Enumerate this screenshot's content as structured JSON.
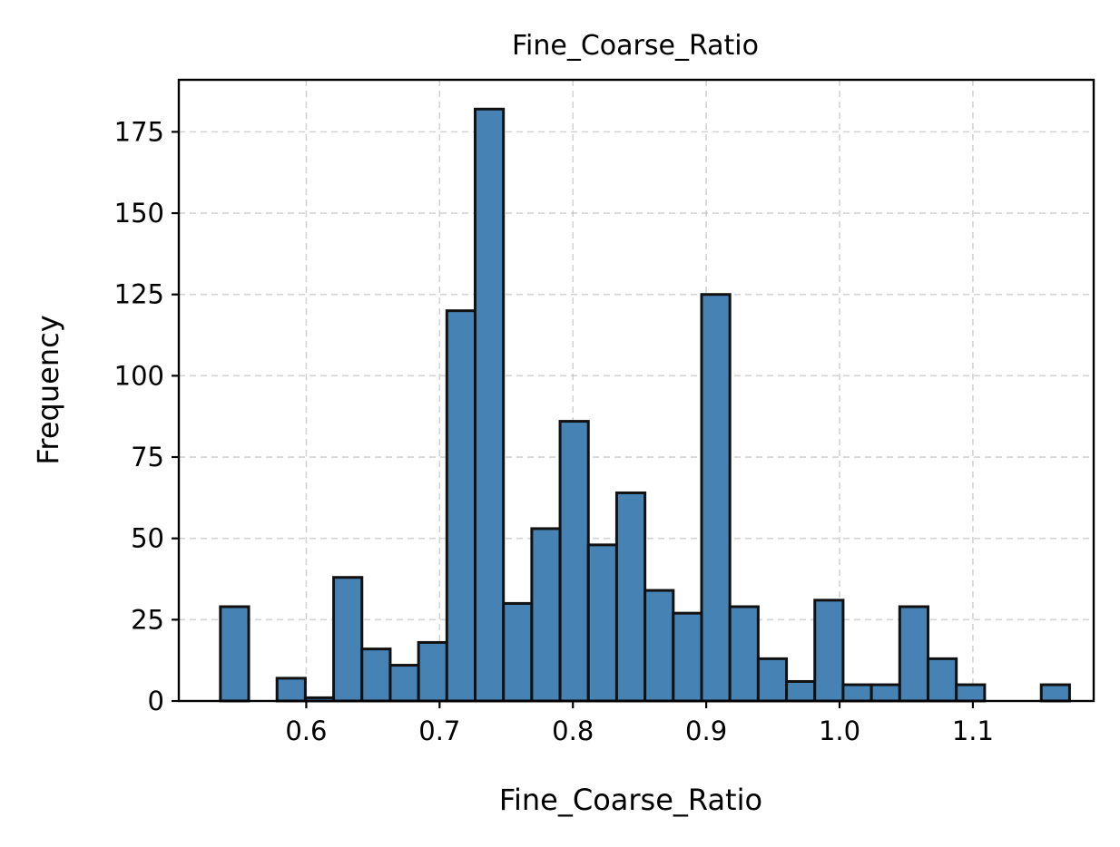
{
  "chart_data": {
    "type": "bar",
    "title": "Fine_Coarse_Ratio",
    "xlabel": "Fine_Coarse_Ratio",
    "ylabel": "Frequency",
    "bar_color": "#4682b4",
    "edge_color": "#111111",
    "grid": true,
    "xlim": [
      0.5044,
      1.1906
    ],
    "ylim": [
      0,
      191
    ],
    "xticks": [
      0.6,
      0.7,
      0.8,
      0.9,
      1.0,
      1.1
    ],
    "xtick_labels": [
      "0.6",
      "0.7",
      "0.8",
      "0.9",
      "1.0",
      "1.1"
    ],
    "yticks": [
      0,
      25,
      50,
      75,
      100,
      125,
      150,
      175
    ],
    "ytick_labels": [
      "0",
      "25",
      "50",
      "75",
      "100",
      "125",
      "150",
      "175"
    ],
    "bin_start": 0.5356,
    "bin_width": 0.02123,
    "values": [
      29,
      0,
      7,
      1,
      38,
      16,
      11,
      18,
      120,
      182,
      30,
      53,
      86,
      48,
      64,
      34,
      27,
      125,
      29,
      13,
      6,
      31,
      5,
      5,
      29,
      13,
      5,
      0,
      0,
      5
    ]
  }
}
